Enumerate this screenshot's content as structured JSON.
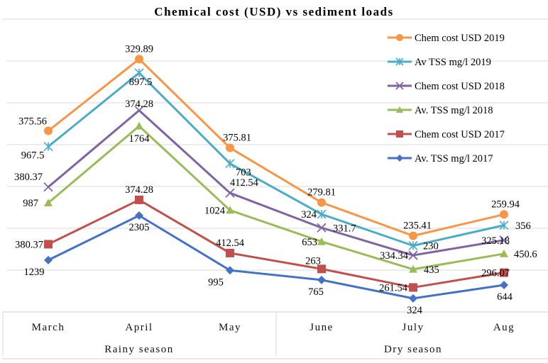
{
  "chart_data": {
    "type": "line",
    "stacked": true,
    "title": "Chemical cost (USD) vs sediment loads",
    "xlabel": "",
    "ylabel": "",
    "categories": [
      "March",
      "April",
      "May",
      "June",
      "July",
      "Aug"
    ],
    "category_groups": [
      {
        "label": "Rainy season",
        "categories": [
          "March",
          "April",
          "May"
        ]
      },
      {
        "label": "Dry season",
        "categories": [
          "June",
          "July",
          "Aug"
        ]
      }
    ],
    "ylim": [
      0,
      7000
    ],
    "y_gridlines": [
      1000,
      2000,
      3000,
      4000,
      5000,
      6000
    ],
    "grid": true,
    "legend_position": "top-right",
    "series": [
      {
        "name": "Av. TSS mg/l 2017",
        "color": "#4472C4",
        "marker": "diamond",
        "values": [
          1239,
          2305,
          995,
          765,
          324,
          644
        ],
        "labels": [
          "1239",
          "2305",
          "995",
          "765",
          "324",
          "644"
        ]
      },
      {
        "name": "Chem cost USD 2017",
        "color": "#C0504D",
        "marker": "square",
        "values": [
          380.37,
          374.28,
          412.54,
          263,
          261.54,
          296.07
        ],
        "labels": [
          "380.37",
          "374.28",
          "412.54",
          "263",
          "261.54",
          "296.07"
        ]
      },
      {
        "name": "Av. TSS mg/l 2018",
        "color": "#9BBB59",
        "marker": "triangle",
        "values": [
          987,
          1764,
          1024,
          653,
          435,
          450.6
        ],
        "labels": [
          "987",
          "1764",
          "1024",
          "653",
          "435",
          "450.6"
        ]
      },
      {
        "name": "Chem cost USD 2018",
        "color": "#8064A2",
        "marker": "x",
        "values": [
          380.37,
          374.28,
          412.54,
          331.7,
          334.34,
          325.18
        ],
        "labels": [
          "380.37",
          "374.28",
          "412.54",
          "331.7",
          "334.34",
          "325.18"
        ]
      },
      {
        "name": "Av TSS mg/l 2019",
        "color": "#4BACC6",
        "marker": "star",
        "values": [
          967.5,
          897.5,
          703,
          324,
          230,
          356
        ],
        "labels": [
          "967.5",
          "897.5",
          "703",
          "324",
          "230",
          "356"
        ]
      },
      {
        "name": "Chem cost USD 2019",
        "color": "#F79646",
        "marker": "circle",
        "values": [
          375.56,
          329.89,
          375.81,
          279.81,
          235.41,
          259.94
        ],
        "labels": [
          "375.56",
          "329.89",
          "375.81",
          "279.81",
          "235.41",
          "259.94"
        ]
      }
    ],
    "legend_order": [
      "Chem cost USD 2019",
      "Av TSS mg/l 2019",
      "Chem cost USD 2018",
      "Av. TSS mg/l 2018",
      "Chem cost USD 2017",
      "Av. TSS mg/l 2017"
    ]
  }
}
